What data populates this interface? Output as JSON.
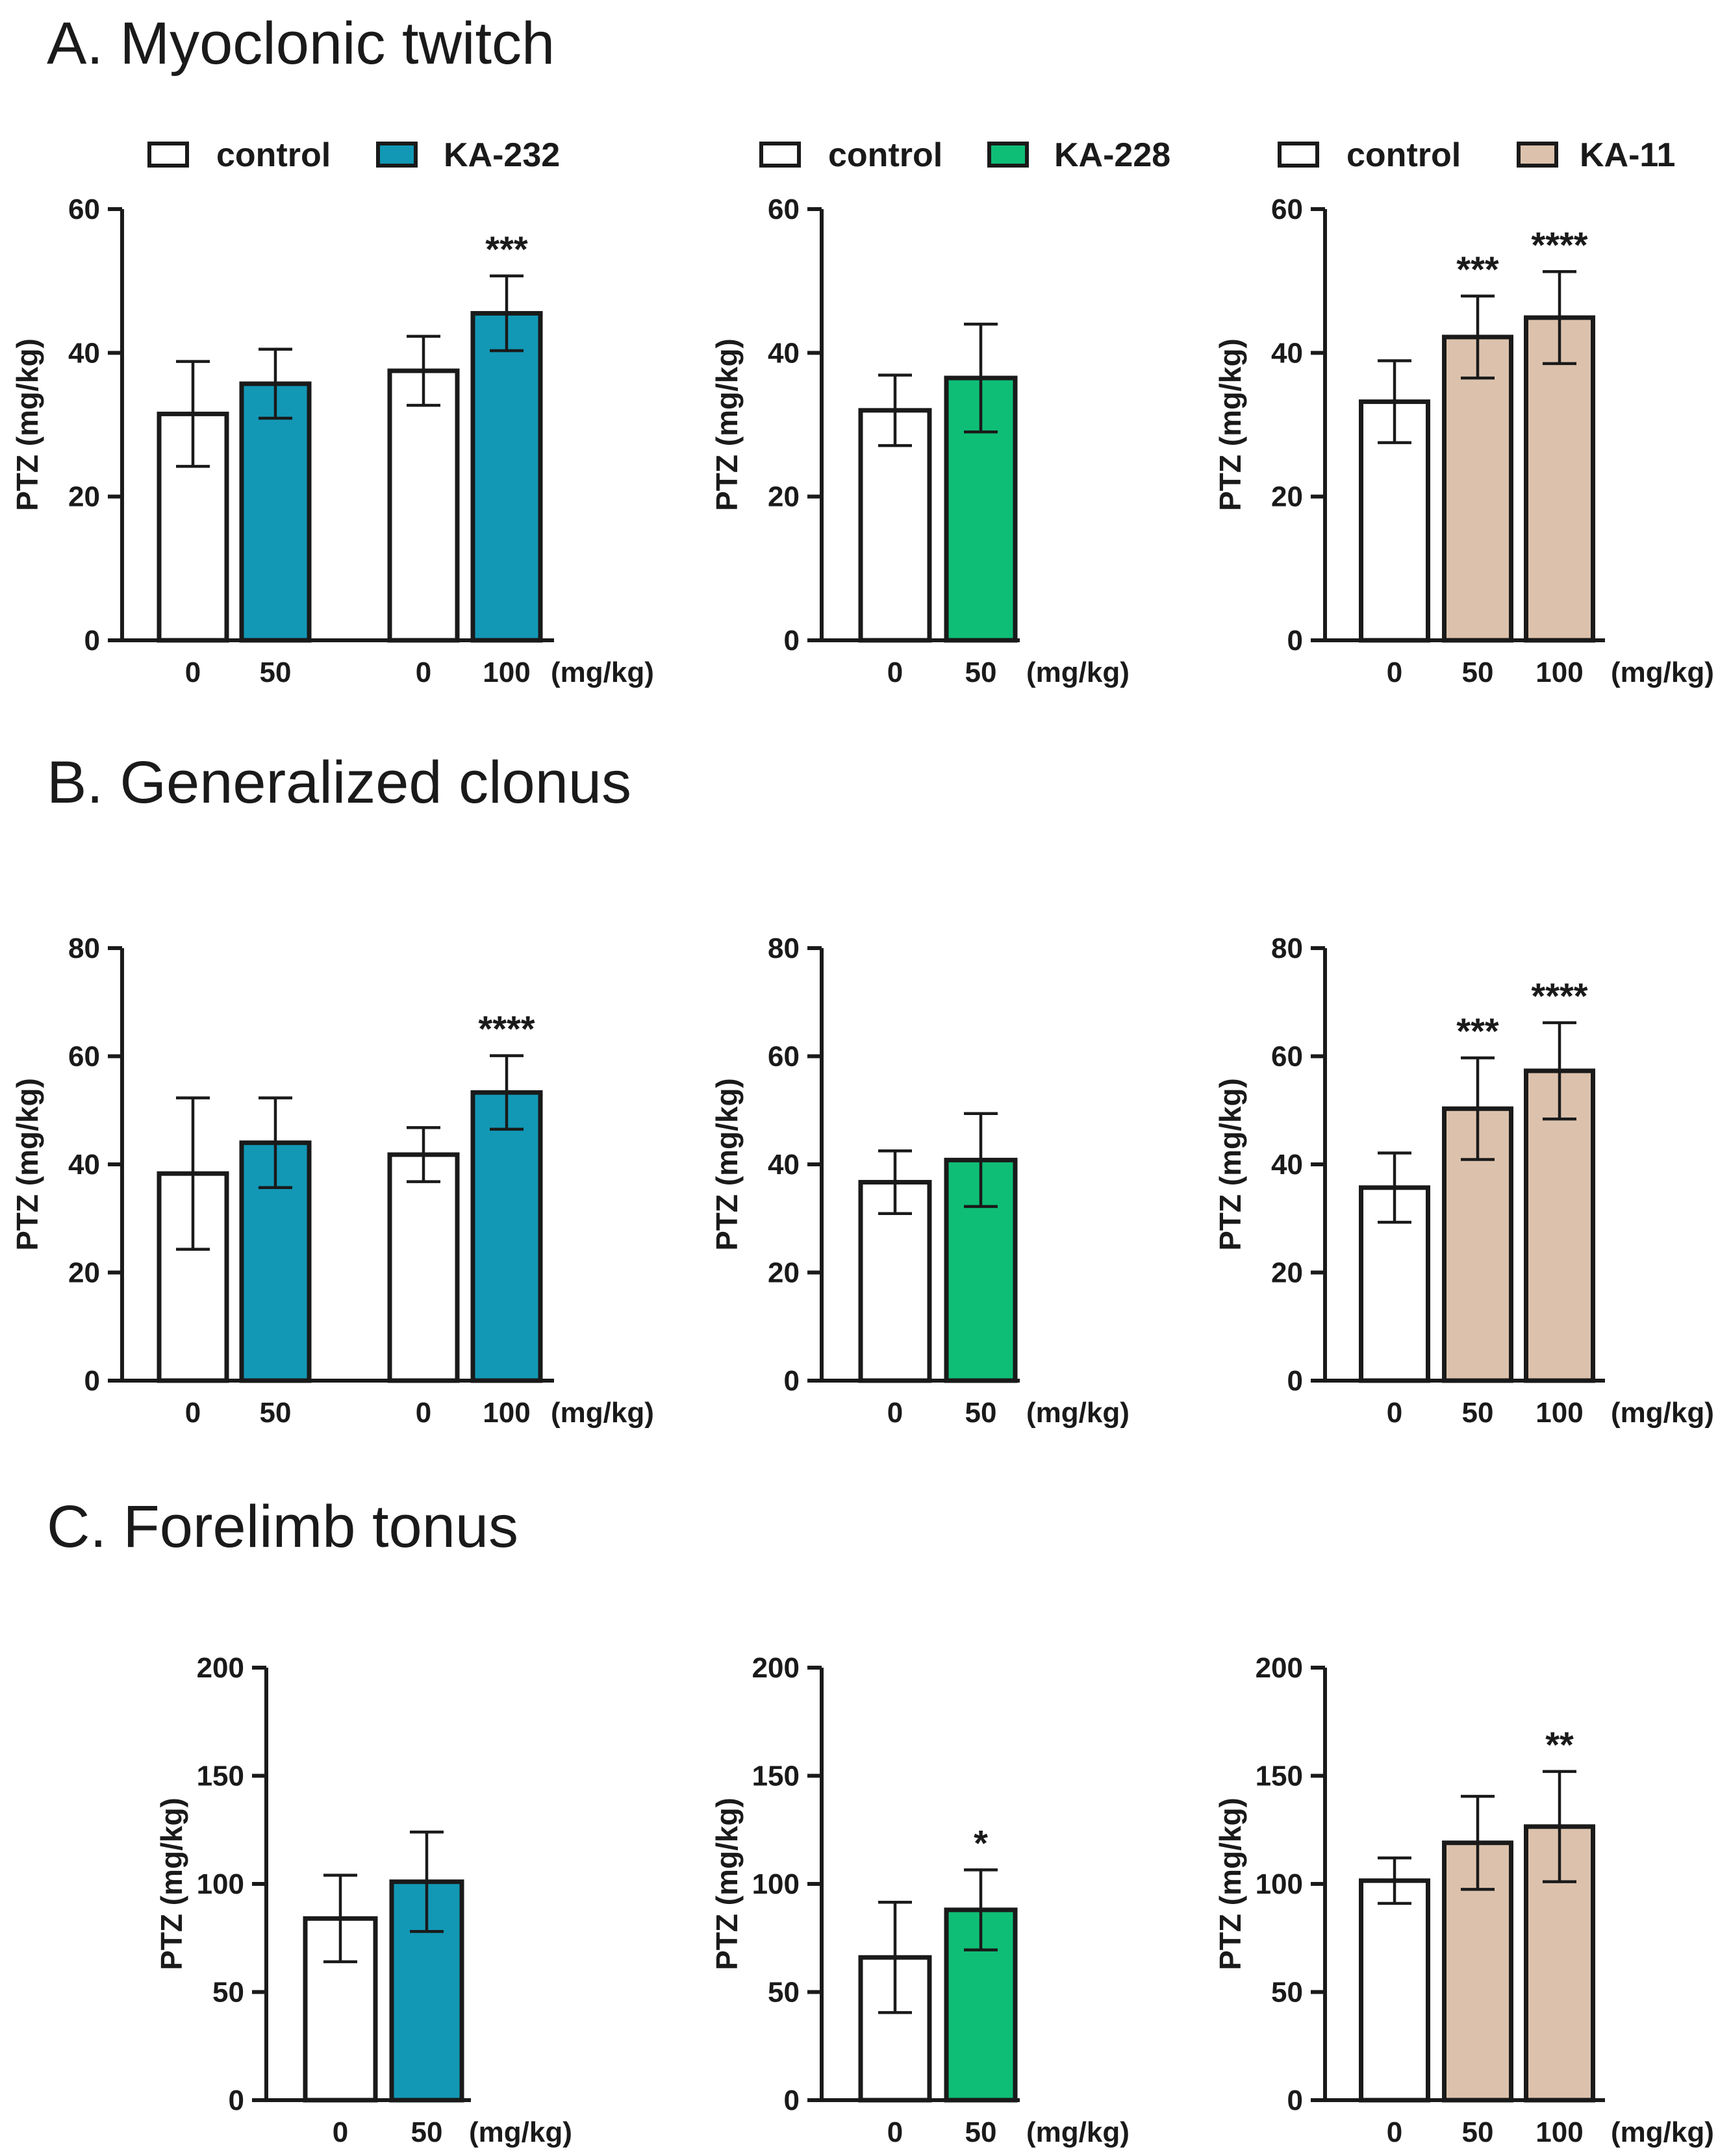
{
  "sections": [
    {
      "id": "A",
      "title": "A. Myoclonic twitch"
    },
    {
      "id": "B",
      "title": "B. Generalized clonus"
    },
    {
      "id": "C",
      "title": "C. Forelimb tonus"
    }
  ],
  "legends": [
    {
      "control_label": "control",
      "drug_label": "KA-232",
      "drug_color": "#1298b5"
    },
    {
      "control_label": "control",
      "drug_label": "KA-228",
      "drug_color": "#0fbe76"
    },
    {
      "control_label": "control",
      "drug_label": "KA-11",
      "drug_color": "#dcc2ac"
    }
  ],
  "colors": {
    "control": "#ffffff",
    "KA-232": "#1298b5",
    "KA-228": "#0fbe76",
    "KA-11": "#dcc2ac"
  },
  "chart_data": [
    {
      "type": "bar",
      "panel": "A1",
      "ylabel": "PTZ (mg/kg)",
      "ylim": [
        0,
        60
      ],
      "yticks": [
        0,
        20,
        40,
        60
      ],
      "unit_label": "(mg/kg)",
      "bars": [
        {
          "label": "0",
          "group": "control",
          "value": 31.5,
          "err": 7.3,
          "sig": ""
        },
        {
          "label": "50",
          "group": "KA-232",
          "value": 35.7,
          "err": 4.8,
          "sig": ""
        },
        {
          "label": "0",
          "group": "control",
          "value": 37.5,
          "err": 4.8,
          "sig": ""
        },
        {
          "label": "100",
          "group": "KA-232",
          "value": 45.5,
          "err": 5.2,
          "sig": "***"
        }
      ]
    },
    {
      "type": "bar",
      "panel": "A2",
      "ylabel": "PTZ (mg/kg)",
      "ylim": [
        0,
        60
      ],
      "yticks": [
        0,
        20,
        40,
        60
      ],
      "unit_label": "(mg/kg)",
      "bars": [
        {
          "label": "0",
          "group": "control",
          "value": 32.0,
          "err": 4.9,
          "sig": ""
        },
        {
          "label": "50",
          "group": "KA-228",
          "value": 36.5,
          "err": 7.5,
          "sig": ""
        }
      ]
    },
    {
      "type": "bar",
      "panel": "A3",
      "ylabel": "PTZ (mg/kg)",
      "ylim": [
        0,
        60
      ],
      "yticks": [
        0,
        20,
        40,
        60
      ],
      "unit_label": "(mg/kg)",
      "bars": [
        {
          "label": "0",
          "group": "control",
          "value": 33.2,
          "err": 5.7,
          "sig": ""
        },
        {
          "label": "50",
          "group": "KA-11",
          "value": 42.2,
          "err": 5.7,
          "sig": "***"
        },
        {
          "label": "100",
          "group": "KA-11",
          "value": 44.9,
          "err": 6.4,
          "sig": "****"
        }
      ]
    },
    {
      "type": "bar",
      "panel": "B1",
      "ylabel": "PTZ (mg/kg)",
      "ylim": [
        0,
        80
      ],
      "yticks": [
        0,
        20,
        40,
        60,
        80
      ],
      "unit_label": "(mg/kg)",
      "bars": [
        {
          "label": "0",
          "group": "control",
          "value": 38.3,
          "err": 14.0,
          "sig": ""
        },
        {
          "label": "50",
          "group": "KA-232",
          "value": 44.0,
          "err": 8.3,
          "sig": ""
        },
        {
          "label": "0",
          "group": "control",
          "value": 41.8,
          "err": 5.0,
          "sig": ""
        },
        {
          "label": "100",
          "group": "KA-232",
          "value": 53.3,
          "err": 6.8,
          "sig": "****"
        }
      ]
    },
    {
      "type": "bar",
      "panel": "B2",
      "ylabel": "PTZ (mg/kg)",
      "ylim": [
        0,
        80
      ],
      "yticks": [
        0,
        20,
        40,
        60,
        80
      ],
      "unit_label": "(mg/kg)",
      "bars": [
        {
          "label": "0",
          "group": "control",
          "value": 36.7,
          "err": 5.8,
          "sig": ""
        },
        {
          "label": "50",
          "group": "KA-228",
          "value": 40.8,
          "err": 8.6,
          "sig": ""
        }
      ]
    },
    {
      "type": "bar",
      "panel": "B3",
      "ylabel": "PTZ (mg/kg)",
      "ylim": [
        0,
        80
      ],
      "yticks": [
        0,
        20,
        40,
        60,
        80
      ],
      "unit_label": "(mg/kg)",
      "bars": [
        {
          "label": "0",
          "group": "control",
          "value": 35.7,
          "err": 6.4,
          "sig": ""
        },
        {
          "label": "50",
          "group": "KA-11",
          "value": 50.3,
          "err": 9.4,
          "sig": "***"
        },
        {
          "label": "100",
          "group": "KA-11",
          "value": 57.3,
          "err": 8.9,
          "sig": "****"
        }
      ]
    },
    {
      "type": "bar",
      "panel": "C1",
      "ylabel": "PTZ (mg/kg)",
      "ylim": [
        0,
        200
      ],
      "yticks": [
        0,
        50,
        100,
        150,
        200
      ],
      "unit_label": "(mg/kg)",
      "bars": [
        {
          "label": "0",
          "group": "control",
          "value": 84.0,
          "err": 20.0,
          "sig": ""
        },
        {
          "label": "50",
          "group": "KA-232",
          "value": 101.0,
          "err": 23.0,
          "sig": ""
        }
      ]
    },
    {
      "type": "bar",
      "panel": "C2",
      "ylabel": "PTZ (mg/kg)",
      "ylim": [
        0,
        200
      ],
      "yticks": [
        0,
        50,
        100,
        150,
        200
      ],
      "unit_label": "(mg/kg)",
      "bars": [
        {
          "label": "0",
          "group": "control",
          "value": 66.0,
          "err": 25.5,
          "sig": ""
        },
        {
          "label": "50",
          "group": "KA-228",
          "value": 88.0,
          "err": 18.5,
          "sig": "*"
        }
      ]
    },
    {
      "type": "bar",
      "panel": "C3",
      "ylabel": "PTZ (mg/kg)",
      "ylim": [
        0,
        200
      ],
      "yticks": [
        0,
        50,
        100,
        150,
        200
      ],
      "unit_label": "(mg/kg)",
      "bars": [
        {
          "label": "0",
          "group": "control",
          "value": 101.5,
          "err": 10.5,
          "sig": ""
        },
        {
          "label": "50",
          "group": "KA-11",
          "value": 119.0,
          "err": 21.5,
          "sig": ""
        },
        {
          "label": "100",
          "group": "KA-11",
          "value": 126.5,
          "err": 25.5,
          "sig": "**"
        }
      ]
    }
  ]
}
